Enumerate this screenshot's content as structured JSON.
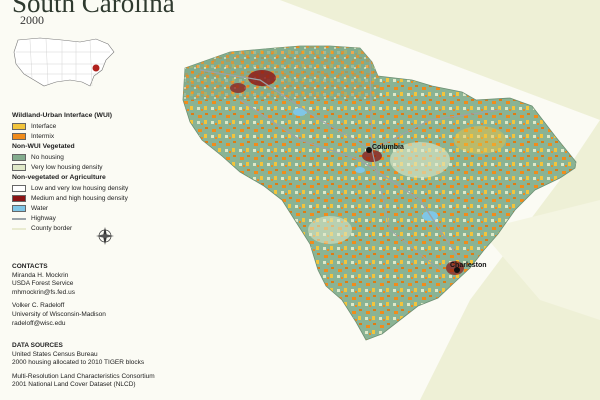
{
  "title": "South Carolina",
  "subtitle": "2000",
  "legend": {
    "wui_heading": "Wildland-Urban Interface (WUI)",
    "wui_items": [
      {
        "label": "Interface",
        "color": "#f2c43c"
      },
      {
        "label": "Intermix",
        "color": "#f08c1c"
      }
    ],
    "nonwui_heading": "Non-WUI Vegetated",
    "nonwui_items": [
      {
        "label": "No housing",
        "color": "#84ad8e"
      },
      {
        "label": "Very low housing density",
        "color": "#dfe8c8"
      }
    ],
    "nonveg_heading": "Non-vegetated or Agriculture",
    "nonveg_items": [
      {
        "label": "Low and very low housing density",
        "color": "#ffffff"
      },
      {
        "label": "Medium and high housing density",
        "color": "#8c1414"
      },
      {
        "label": "Water",
        "color": "#7fc6e6"
      }
    ],
    "line_items": [
      {
        "label": "Highway"
      },
      {
        "label": "County border"
      }
    ]
  },
  "contacts": {
    "heading": "CONTACTS",
    "person1": {
      "name": "Miranda H. Mockrin",
      "org": "USDA Forest Service",
      "email": "mhmockrin@fs.fed.us"
    },
    "person2": {
      "name": "Volker C. Radeloff",
      "org": "University of Wisconsin-Madison",
      "email": "radeloff@wisc.edu"
    }
  },
  "sources": {
    "heading": "DATA SOURCES",
    "line1": "United States Census Bureau",
    "line2": "2000 housing allocated to 2010 TIGER blocks",
    "line3": "Multi-Resolution Land Characteristics Consortium",
    "line4": "2001 National Land Cover Dataset (NLCD)"
  },
  "cities": [
    {
      "name": "Columbia"
    },
    {
      "name": "Charleston"
    }
  ],
  "colors": {
    "ocean_band": "#eef0d6",
    "state_base": "#8ab394"
  }
}
